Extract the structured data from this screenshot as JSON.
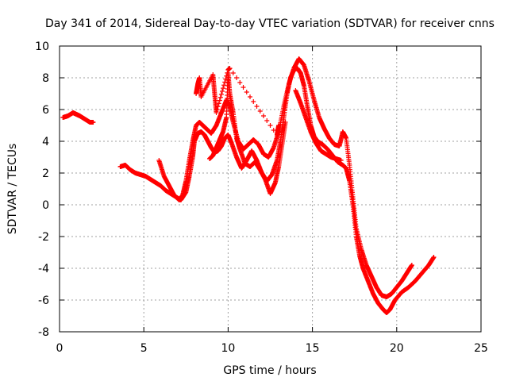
{
  "chart_data": {
    "type": "scatter",
    "title": "Day 341 of 2014, Sidereal Day-to-day VTEC variation (SDTVAR) for receiver cnns",
    "xlabel": "GPS time / hours",
    "ylabel": "SDTVAR / TECUs",
    "xlim": [
      0,
      25
    ],
    "ylim": [
      -8,
      10
    ],
    "xticks": [
      "0",
      "5",
      "10",
      "15",
      "20",
      "25"
    ],
    "yticks": [
      "-8",
      "-6",
      "-4",
      "-2",
      "0",
      "2",
      "4",
      "6",
      "8",
      "10"
    ],
    "grid": true,
    "marker": "+",
    "color": "#ff0000",
    "series": [
      {
        "name": "segment-1",
        "x": [
          0.2,
          0.5,
          0.8,
          1.0,
          1.2,
          1.5,
          1.8,
          2.0
        ],
        "y": [
          5.5,
          5.6,
          5.8,
          5.7,
          5.6,
          5.4,
          5.2,
          5.2
        ]
      },
      {
        "name": "segment-2",
        "x": [
          3.6,
          3.9,
          4.2,
          4.5,
          4.8,
          5.1,
          5.4,
          5.7,
          6.0,
          6.3,
          6.6,
          6.9,
          7.2,
          7.5,
          7.7,
          7.9,
          8.0,
          8.2,
          8.4,
          8.6,
          8.8,
          9.0,
          9.2,
          9.4,
          9.6,
          9.8,
          10.0,
          10.2,
          10.5,
          10.8,
          11.1,
          11.4,
          11.7,
          12.0,
          12.3,
          12.6,
          12.9,
          13.1,
          13.3,
          13.5,
          13.7,
          13.9,
          14.1,
          14.3,
          14.5,
          14.7,
          14.9,
          15.1,
          15.3,
          15.6,
          15.9,
          16.2,
          16.5,
          16.8,
          17.0,
          17.2,
          17.4,
          17.6,
          17.8,
          18.0,
          18.3,
          18.6,
          18.9,
          19.2,
          19.4,
          19.6,
          19.9,
          20.3,
          20.7,
          21.1,
          21.5,
          21.9,
          22.2
        ],
        "y": [
          2.4,
          2.5,
          2.2,
          2.0,
          1.9,
          1.8,
          1.6,
          1.4,
          1.2,
          0.9,
          0.7,
          0.5,
          0.3,
          0.8,
          1.8,
          3.0,
          4.0,
          4.5,
          4.6,
          4.4,
          4.0,
          3.6,
          3.3,
          3.4,
          3.7,
          4.2,
          4.4,
          3.9,
          3.0,
          2.3,
          2.8,
          3.4,
          2.8,
          2.0,
          1.5,
          1.9,
          2.8,
          4.0,
          5.5,
          7.0,
          8.0,
          8.5,
          8.6,
          8.3,
          7.5,
          6.2,
          5.0,
          4.3,
          4.0,
          3.8,
          3.5,
          3.1,
          2.7,
          2.5,
          2.3,
          1.5,
          0.0,
          -2.0,
          -3.2,
          -4.0,
          -4.8,
          -5.6,
          -6.2,
          -6.6,
          -6.8,
          -6.6,
          -6.0,
          -5.5,
          -5.2,
          -4.8,
          -4.3,
          -3.8,
          -3.3
        ]
      },
      {
        "name": "segment-3",
        "x": [
          5.9,
          6.2,
          6.5,
          6.8,
          7.1,
          7.3,
          7.5,
          7.7,
          7.9,
          8.1,
          8.3,
          8.5,
          8.7,
          9.0,
          9.3,
          9.6,
          9.9,
          10.1,
          10.3,
          10.6,
          10.9,
          11.2,
          11.5,
          11.8,
          12.1,
          12.4,
          12.7,
          13.0,
          13.3,
          13.6,
          13.9,
          14.2,
          14.5,
          14.8,
          15.1,
          15.4,
          15.7,
          16.0,
          16.3,
          16.6,
          16.8,
          17.0,
          17.2,
          17.4,
          17.6,
          17.9,
          18.2,
          18.5,
          18.8,
          19.1,
          19.4,
          19.7,
          20.0,
          20.3,
          20.6,
          20.9
        ],
        "y": [
          2.8,
          1.8,
          1.2,
          0.6,
          0.3,
          0.6,
          1.5,
          2.8,
          4.0,
          5.0,
          5.2,
          5.0,
          4.8,
          4.5,
          5.0,
          5.8,
          6.6,
          6.2,
          5.2,
          4.0,
          3.5,
          3.8,
          4.1,
          3.8,
          3.2,
          3.0,
          3.6,
          4.6,
          6.2,
          7.6,
          8.6,
          9.2,
          8.8,
          7.8,
          6.6,
          5.5,
          4.8,
          4.2,
          3.8,
          3.7,
          4.6,
          4.2,
          2.5,
          0.5,
          -1.5,
          -2.8,
          -3.8,
          -4.5,
          -5.2,
          -5.7,
          -5.8,
          -5.6,
          -5.2,
          -4.8,
          -4.3,
          -3.8
        ]
      },
      {
        "name": "segment-4",
        "x": [
          8.9,
          9.1,
          9.3,
          9.5,
          9.7,
          9.9,
          10.0,
          10.1,
          10.3,
          10.5,
          10.7,
          11.0,
          11.3,
          11.6,
          11.9,
          12.2,
          12.5,
          12.8,
          13.0,
          13.2,
          13.4
        ],
        "y": [
          2.9,
          3.1,
          3.6,
          4.1,
          4.6,
          5.5,
          8.3,
          7.0,
          5.8,
          4.2,
          3.5,
          2.6,
          2.4,
          2.7,
          2.2,
          1.6,
          0.7,
          1.4,
          2.4,
          3.8,
          5.2
        ]
      },
      {
        "name": "segment-5",
        "x": [
          14.0,
          14.3,
          14.6,
          14.9,
          15.2,
          15.5,
          15.8,
          16.1,
          16.4,
          16.7
        ],
        "y": [
          7.2,
          6.4,
          5.5,
          4.6,
          3.9,
          3.4,
          3.2,
          3.0,
          2.9,
          2.8
        ]
      },
      {
        "name": "segment-6",
        "x": [
          8.1,
          8.2,
          8.3,
          8.4,
          9.1,
          9.2,
          9.3,
          10.0,
          10.1,
          12.9,
          13.0
        ],
        "y": [
          7.0,
          7.6,
          8.0,
          6.8,
          8.2,
          7.0,
          5.8,
          8.5,
          8.6,
          4.4,
          5.0
        ]
      }
    ]
  }
}
